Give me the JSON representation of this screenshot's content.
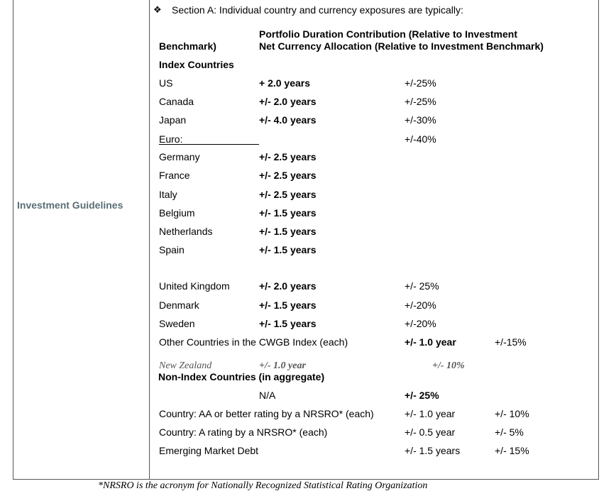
{
  "left_label": "Investment Guidelines",
  "section_title": "Section A:  Individual country and currency exposures are typically:",
  "header": {
    "col1": "Benchmark)",
    "col2_line1": "Portfolio Duration Contribution (Relative to Investment",
    "col2_line2": "Net Currency Allocation (Relative to Investment Benchmark)"
  },
  "index_heading": "Index Countries",
  "rows": [
    {
      "country": "US",
      "duration": "+ 2.0 years",
      "currency": "+/-25%"
    },
    {
      "country": "Canada",
      "duration": "+/- 2.0 years",
      "currency": "+/-25%"
    },
    {
      "country": "Japan",
      "duration": "+/- 4.0 years",
      "currency": "+/-30%"
    },
    {
      "country": "Euro:",
      "duration": "",
      "currency": "+/-40%"
    },
    {
      "country": "Germany",
      "duration": "+/- 2.5 years",
      "currency": ""
    },
    {
      "country": "France",
      "duration": "+/- 2.5 years",
      "currency": ""
    },
    {
      "country": "Italy",
      "duration": "+/- 2.5 years",
      "currency": ""
    },
    {
      "country": "Belgium",
      "duration": "+/- 1.5 years",
      "currency": ""
    },
    {
      "country": "Netherlands",
      "duration": "+/- 1.5 years",
      "currency": ""
    },
    {
      "country": "Spain",
      "duration": "+/- 1.5 years",
      "currency": ""
    },
    {
      "country": "United Kingdom",
      "duration": "+/- 2.0 years",
      "currency": "+/- 25%"
    },
    {
      "country": "Denmark",
      "duration": "+/- 1.5 years",
      "currency": "+/-20%"
    },
    {
      "country": "Sweden",
      "duration": "+/- 1.5 years",
      "currency": "+/-20%"
    }
  ],
  "other_countries": {
    "label": "Other Countries in the CWGB Index (each)",
    "duration": "+/- 1.0 year",
    "currency": "+/-15%"
  },
  "new_zealand": {
    "label": "New Zealand",
    "duration": "+/- 1.0 year",
    "currency": "+/- 10%"
  },
  "non_index_heading": "Non-Index Countries (in aggregate)",
  "non_index_rows": [
    {
      "label": "",
      "col2": "N/A",
      "col3": "+/-  25%",
      "col4": ""
    },
    {
      "label": "Country: AA or better rating by a NRSRO* (each)",
      "col2": "",
      "col3": "+/- 1.0 year",
      "col4": "+/- 10%"
    },
    {
      "label": "Country: A rating by a NRSRO* (each)",
      "col2": "",
      "col3": "+/- 0.5 year",
      "col4": "+/- 5%"
    },
    {
      "label": "Emerging Market Debt",
      "col2": "",
      "col3": "+/- 1.5 years",
      "col4": "+/- 15%"
    }
  ],
  "footnote": "*NRSRO is the acronym for Nationally Recognized Statistical Rating Organization"
}
